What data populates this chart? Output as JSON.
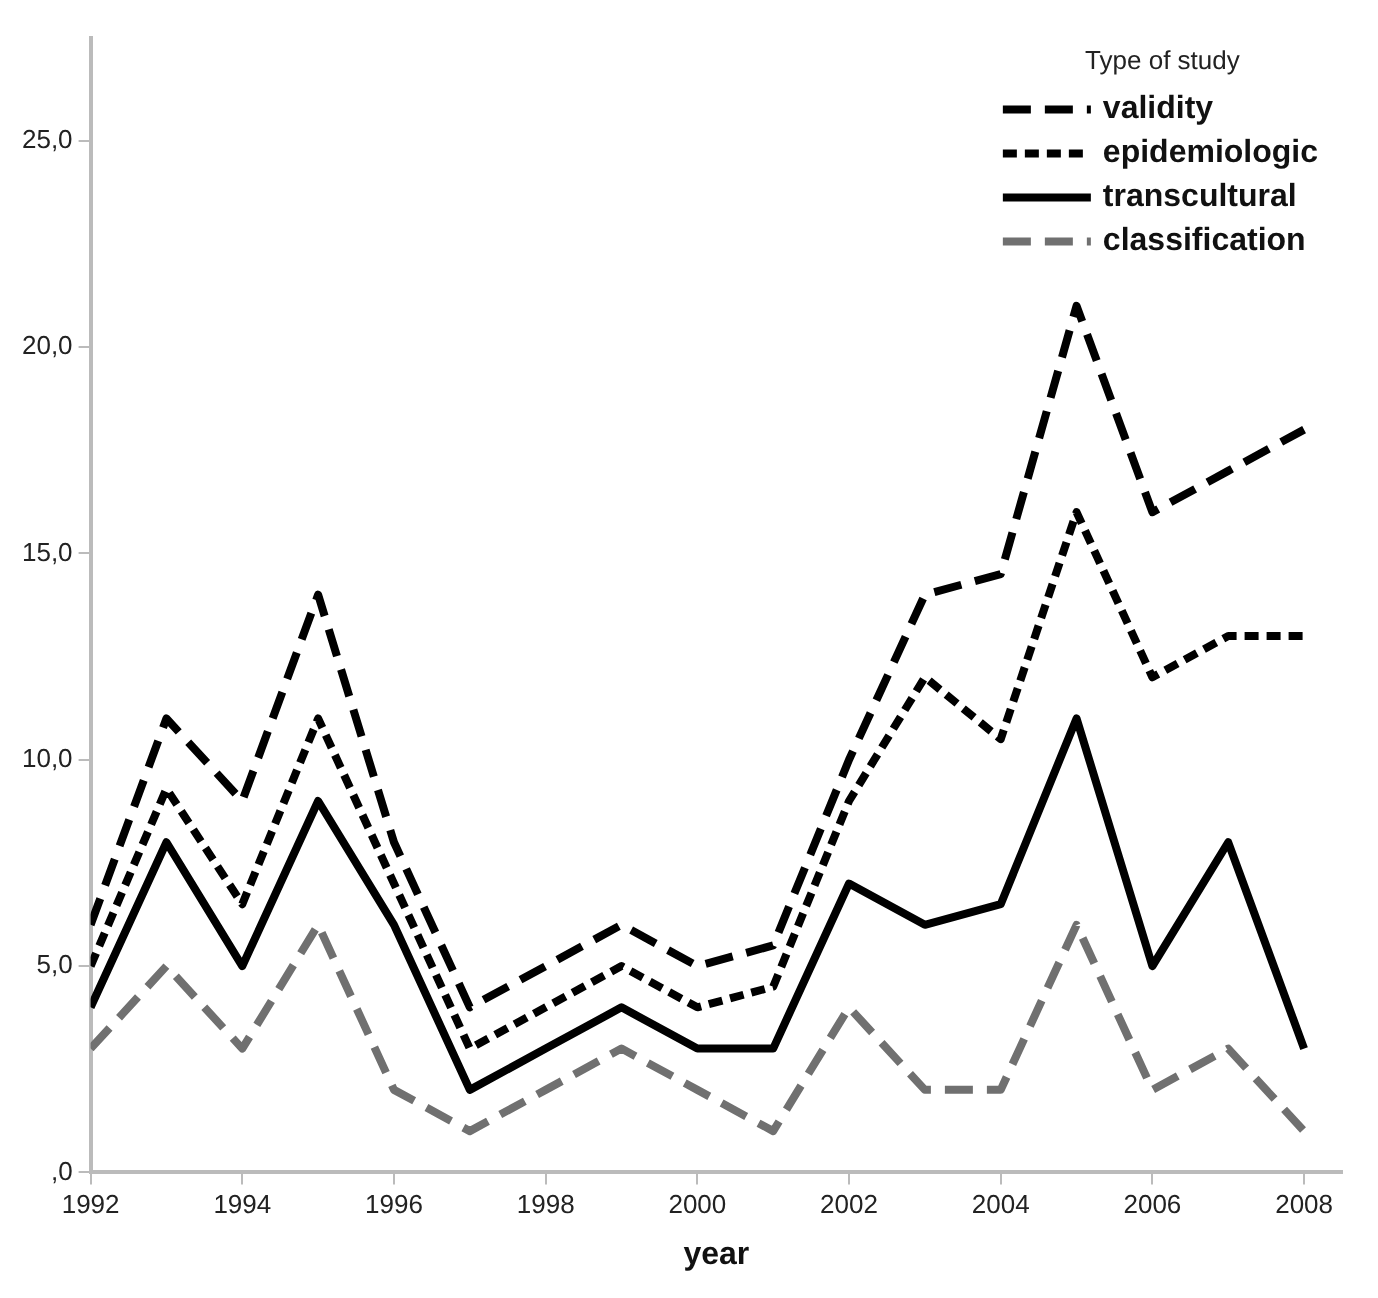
{
  "chart_data": {
    "type": "line",
    "xlabel": "year",
    "legend_title": "Type of study",
    "legend": "top right",
    "grid": false,
    "marker": "none",
    "x": [
      1992,
      1993,
      1994,
      1995,
      1996,
      1997,
      1998,
      1999,
      2000,
      2001,
      2002,
      2003,
      2004,
      2005,
      2006,
      2007,
      2008
    ],
    "xlim": [
      1992,
      2008.5
    ],
    "xticks": [
      1992,
      1994,
      1996,
      1998,
      2000,
      2002,
      2004,
      2006,
      2008
    ],
    "ylim": [
      0,
      27.5
    ],
    "yticks": [
      {
        "value": 0,
        "label": ",0"
      },
      {
        "value": 5,
        "label": "5,0"
      },
      {
        "value": 10,
        "label": "10,0"
      },
      {
        "value": 15,
        "label": "15,0"
      },
      {
        "value": 20,
        "label": "20,0"
      },
      {
        "value": 25,
        "label": "25,0"
      }
    ],
    "series": [
      {
        "name": "validity",
        "color": "#000000",
        "line_style": "dashed",
        "values": [
          6,
          11,
          9,
          14,
          8,
          4,
          5,
          6,
          5,
          5.5,
          10,
          14,
          14.5,
          21,
          16,
          17,
          18
        ]
      },
      {
        "name": "epidemiologic",
        "color": "#000000",
        "line_style": "dotted",
        "values": [
          5,
          9.3,
          6.5,
          11,
          7,
          3,
          4,
          5,
          4,
          4.5,
          9,
          12,
          10.5,
          16,
          12,
          13,
          13
        ]
      },
      {
        "name": "transcultural",
        "color": "#000000",
        "line_style": "solid",
        "values": [
          4,
          8,
          5,
          9,
          6,
          2,
          3,
          4,
          3,
          3,
          7,
          6,
          6.5,
          11,
          5,
          8,
          3
        ]
      },
      {
        "name": "classification",
        "color": "#707070",
        "line_style": "dashed",
        "values": [
          3,
          5,
          3,
          6,
          2,
          1,
          2,
          3,
          2,
          1,
          4,
          2,
          2,
          6,
          2,
          3,
          1
        ]
      }
    ]
  }
}
